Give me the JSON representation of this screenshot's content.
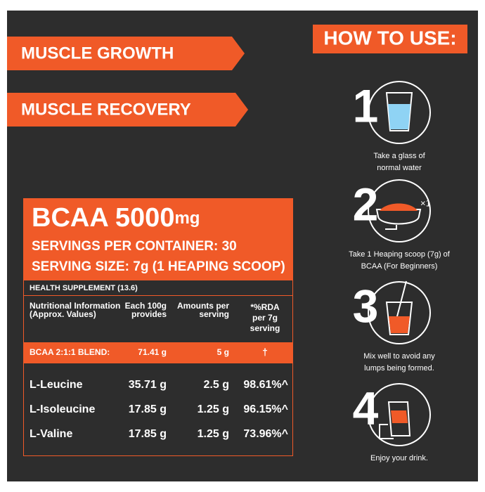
{
  "banners": [
    "MUSCLE GROWTH",
    "MUSCLE RECOVERY"
  ],
  "label": {
    "title": "BCAA 5000",
    "title_unit": "mg",
    "servings": "SERVINGS PER CONTAINER: 30",
    "serving_size": "SERVING SIZE: 7g (1 HEAPING SCOOP)"
  },
  "table": {
    "caption": "HEALTH SUPPLEMENT (13.6)",
    "columns": [
      [
        "Nutritional Information",
        "(Approx. Values)"
      ],
      [
        "Each 100g",
        "provides"
      ],
      [
        "Amounts per",
        "serving"
      ],
      [
        "*%RDA",
        "per 7g",
        "serving"
      ]
    ],
    "blend": [
      "BCAA  2:1:1 BLEND:",
      "71.41 g",
      "5 g",
      "†"
    ],
    "rows": [
      [
        "L-Leucine",
        "35.71 g",
        "2.5 g",
        "98.61%^"
      ],
      [
        "L-Isoleucine",
        "17.85 g",
        "1.25 g",
        "96.15%^"
      ],
      [
        "L-Valine",
        "17.85 g",
        "1.25 g",
        "73.96%^"
      ]
    ]
  },
  "how_to_use": {
    "title": "HOW TO USE:",
    "steps": [
      {
        "number": "1",
        "text": [
          "Take a glass of",
          "normal water"
        ]
      },
      {
        "number": "2",
        "icon_label": "×1",
        "text": [
          "Take 1 Heaping scoop (7g) of",
          "BCAA (For Beginners)"
        ]
      },
      {
        "number": "3",
        "text": [
          "Mix well to avoid any",
          "lumps being formed."
        ]
      },
      {
        "number": "4",
        "text": [
          "Enjoy your drink."
        ]
      }
    ]
  }
}
